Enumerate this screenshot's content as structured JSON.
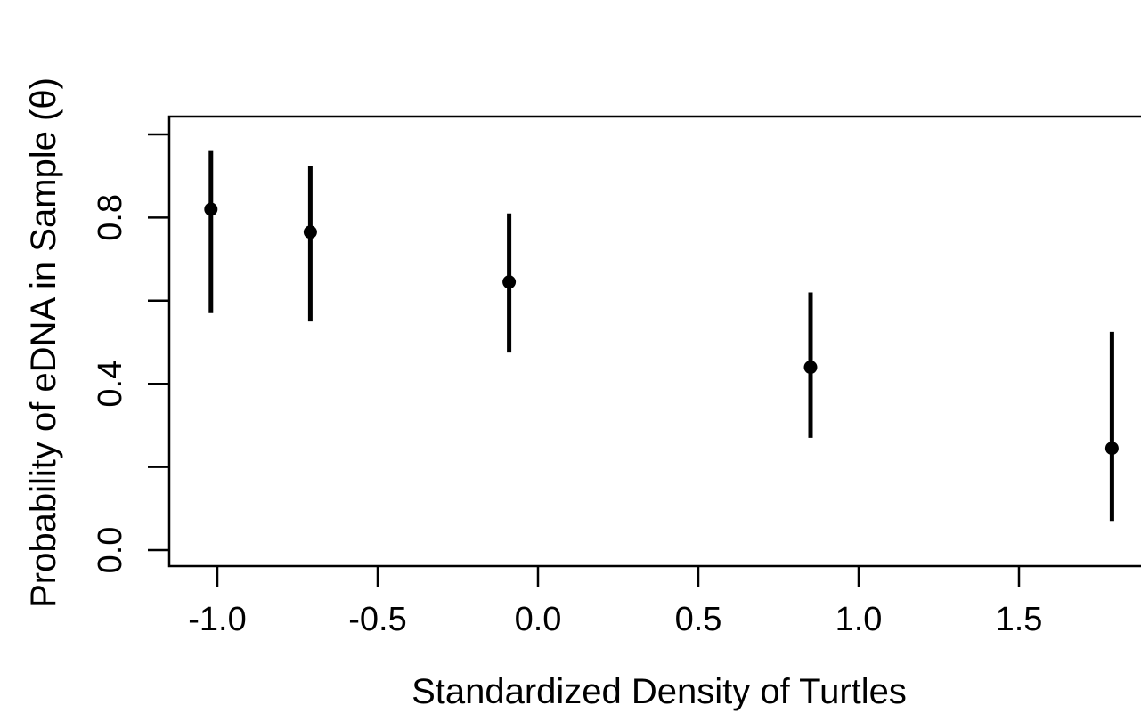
{
  "chart_data": {
    "type": "scatter",
    "title": "",
    "xlabel": "Standardized Density of Turtles",
    "ylabel": "Probability of eDNA in Sample (θ)",
    "xlim": [
      -1.1,
      1.8
    ],
    "ylim": [
      0.0,
      1.0
    ],
    "xticks": [
      -1.0,
      -0.5,
      0.0,
      0.5,
      1.0,
      1.5
    ],
    "xtick_labels": [
      "-1.0",
      "-0.5",
      "0.0",
      "0.5",
      "1.0",
      "1.5"
    ],
    "yticks": [
      0.0,
      0.2,
      0.4,
      0.6,
      0.8,
      1.0
    ],
    "ytick_labels": [
      "0.0",
      "",
      "0.4",
      "",
      "0.8",
      ""
    ],
    "grid": false,
    "legend": "none",
    "points": [
      {
        "x": -1.02,
        "y": 0.82,
        "lower": 0.57,
        "upper": 0.96
      },
      {
        "x": -0.71,
        "y": 0.765,
        "lower": 0.55,
        "upper": 0.925
      },
      {
        "x": -0.09,
        "y": 0.645,
        "lower": 0.475,
        "upper": 0.81
      },
      {
        "x": 0.85,
        "y": 0.44,
        "lower": 0.27,
        "upper": 0.62
      },
      {
        "x": 1.79,
        "y": 0.245,
        "lower": 0.07,
        "upper": 0.525
      }
    ],
    "marker_color": "#000000"
  }
}
